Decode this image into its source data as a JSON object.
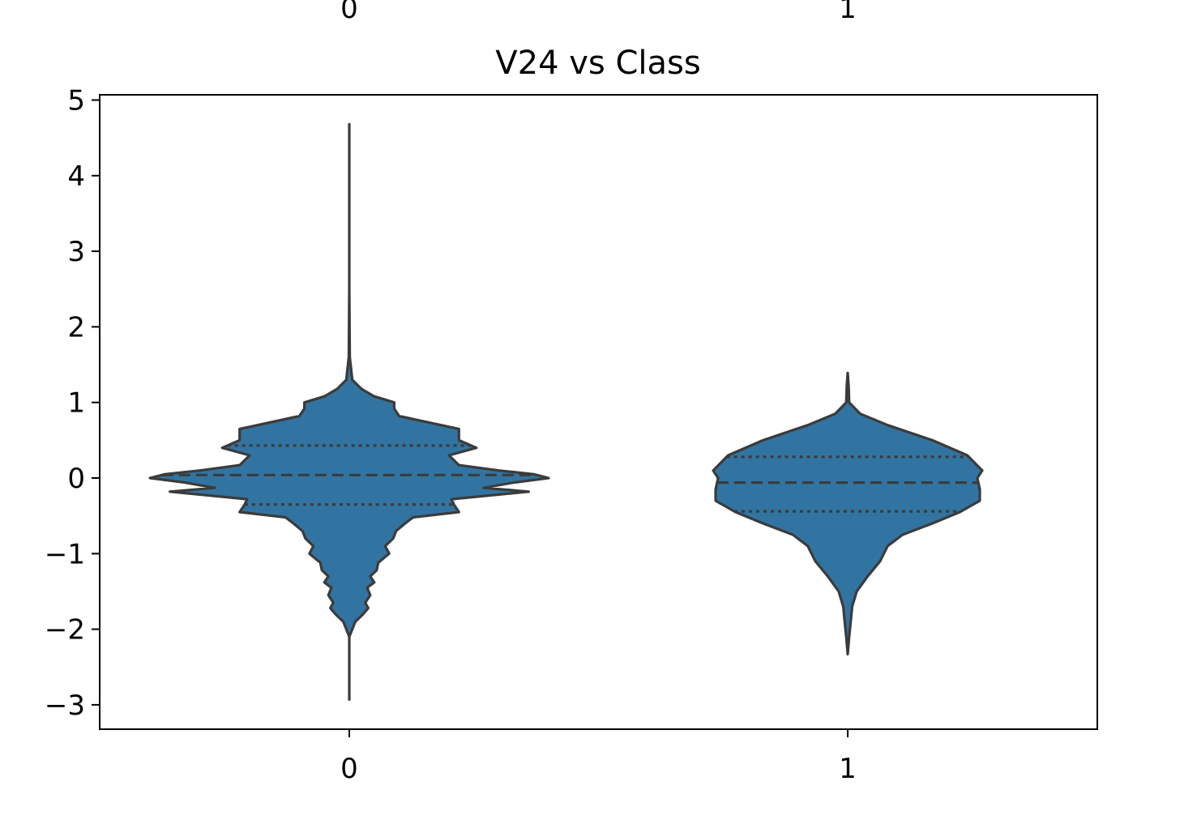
{
  "chart_data": {
    "type": "violin",
    "title": "V24 vs Class",
    "xlabel": "",
    "ylabel": "",
    "categories": [
      "0",
      "1"
    ],
    "top_labels": [
      "0",
      "1"
    ],
    "ylim": [
      -3.3,
      5.05
    ],
    "yticks": [
      -3,
      -2,
      -1,
      0,
      1,
      2,
      3,
      4,
      5
    ],
    "ytick_labels": [
      "−3",
      "−2",
      "−1",
      "0",
      "1",
      "2",
      "3",
      "4",
      "5"
    ],
    "grid": false,
    "colors": {
      "fill": "#3274a1",
      "edge": "#3b3b3b"
    },
    "violins": [
      {
        "category": "0",
        "min": -2.93,
        "max": 4.68,
        "quartiles": {
          "q1": -0.35,
          "median": 0.04,
          "q3": 0.43
        },
        "profile": [
          [
            -2.93,
            0.0
          ],
          [
            -2.5,
            0.0
          ],
          [
            -2.1,
            0.0
          ],
          [
            -1.9,
            0.012
          ],
          [
            -1.8,
            0.028
          ],
          [
            -1.72,
            0.038
          ],
          [
            -1.65,
            0.032
          ],
          [
            -1.55,
            0.042
          ],
          [
            -1.45,
            0.036
          ],
          [
            -1.38,
            0.05
          ],
          [
            -1.3,
            0.042
          ],
          [
            -1.22,
            0.055
          ],
          [
            -1.12,
            0.058
          ],
          [
            -1.0,
            0.08
          ],
          [
            -0.9,
            0.072
          ],
          [
            -0.8,
            0.088
          ],
          [
            -0.7,
            0.094
          ],
          [
            -0.6,
            0.112
          ],
          [
            -0.52,
            0.128
          ],
          [
            -0.45,
            0.22
          ],
          [
            -0.35,
            0.21
          ],
          [
            -0.28,
            0.205
          ],
          [
            -0.18,
            0.36
          ],
          [
            -0.13,
            0.27
          ],
          [
            -0.06,
            0.33
          ],
          [
            0.0,
            0.4
          ],
          [
            0.05,
            0.37
          ],
          [
            0.1,
            0.3
          ],
          [
            0.17,
            0.22
          ],
          [
            0.3,
            0.2
          ],
          [
            0.4,
            0.255
          ],
          [
            0.5,
            0.22
          ],
          [
            0.65,
            0.22
          ],
          [
            0.72,
            0.17
          ],
          [
            0.82,
            0.1
          ],
          [
            0.92,
            0.09
          ],
          [
            1.0,
            0.09
          ],
          [
            1.08,
            0.05
          ],
          [
            1.18,
            0.024
          ],
          [
            1.3,
            0.006
          ],
          [
            1.6,
            0.001
          ],
          [
            2.5,
            0.0
          ],
          [
            3.5,
            0.0
          ],
          [
            4.68,
            0.0
          ]
        ]
      },
      {
        "category": "1",
        "min": -2.33,
        "max": 1.39,
        "quartiles": {
          "q1": -0.44,
          "median": -0.06,
          "q3": 0.28
        },
        "profile": [
          [
            -2.33,
            0.0
          ],
          [
            -2.1,
            0.003
          ],
          [
            -1.9,
            0.006
          ],
          [
            -1.7,
            0.009
          ],
          [
            -1.5,
            0.018
          ],
          [
            -1.3,
            0.04
          ],
          [
            -1.1,
            0.065
          ],
          [
            -0.9,
            0.08
          ],
          [
            -0.75,
            0.11
          ],
          [
            -0.6,
            0.17
          ],
          [
            -0.45,
            0.225
          ],
          [
            -0.3,
            0.265
          ],
          [
            -0.15,
            0.265
          ],
          [
            0.0,
            0.26
          ],
          [
            0.1,
            0.27
          ],
          [
            0.3,
            0.24
          ],
          [
            0.5,
            0.17
          ],
          [
            0.7,
            0.08
          ],
          [
            0.85,
            0.025
          ],
          [
            1.0,
            0.003
          ],
          [
            1.2,
            0.002
          ],
          [
            1.39,
            0.0
          ]
        ]
      }
    ]
  }
}
